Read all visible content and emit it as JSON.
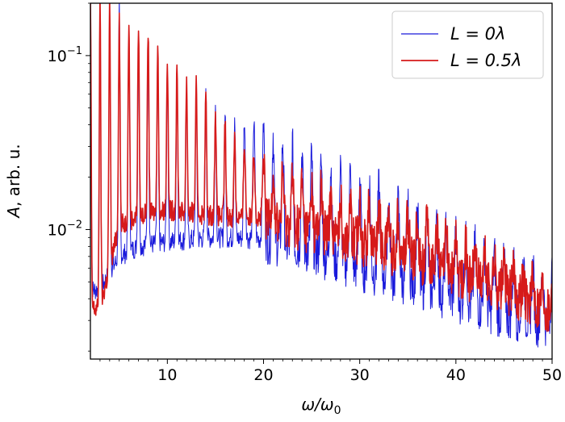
{
  "chart_data": {
    "type": "line",
    "xlabel_base": "ω/ω",
    "xlabel_sub": "0",
    "ylabel_var": "A",
    "ylabel_rest": ", arb. u.",
    "yscale": "log",
    "xlim": [
      2,
      50
    ],
    "ylim": [
      0.0018,
      0.2
    ],
    "x_ticks": [
      10,
      20,
      30,
      40,
      50
    ],
    "x_tick_labels": [
      "10",
      "20",
      "30",
      "40",
      "50"
    ],
    "y_ticks": [
      0.01,
      0.1
    ],
    "y_tick_base": "10",
    "y_tick_exps": [
      "−2",
      "−1"
    ],
    "grid": false,
    "legend_position": "top-right",
    "series": [
      {
        "name": "L = 0λ",
        "color": "#1a1adb",
        "harmonic_peaks": [
          [
            3,
            0.2
          ],
          [
            4,
            0.2
          ],
          [
            5,
            0.185
          ],
          [
            6,
            0.15
          ],
          [
            7,
            0.13
          ],
          [
            8,
            0.11
          ],
          [
            9,
            0.095
          ],
          [
            10,
            0.085
          ],
          [
            11,
            0.075
          ],
          [
            12,
            0.068
          ],
          [
            13,
            0.062
          ],
          [
            14,
            0.058
          ],
          [
            15,
            0.052
          ],
          [
            16,
            0.048
          ],
          [
            17,
            0.045
          ],
          [
            18,
            0.043
          ],
          [
            19,
            0.041
          ],
          [
            20,
            0.039
          ],
          [
            21,
            0.036
          ],
          [
            22,
            0.033
          ],
          [
            23,
            0.03
          ],
          [
            24,
            0.028
          ],
          [
            25,
            0.026
          ],
          [
            26,
            0.024
          ],
          [
            27,
            0.023
          ],
          [
            28,
            0.022
          ],
          [
            29,
            0.021
          ],
          [
            30,
            0.02
          ],
          [
            31,
            0.018
          ],
          [
            32,
            0.017
          ],
          [
            33,
            0.015
          ],
          [
            34,
            0.014
          ],
          [
            35,
            0.013
          ],
          [
            36,
            0.012
          ],
          [
            37,
            0.011
          ],
          [
            38,
            0.01
          ],
          [
            39,
            0.0095
          ],
          [
            40,
            0.009
          ],
          [
            41,
            0.0085
          ],
          [
            42,
            0.008
          ],
          [
            43,
            0.0075
          ],
          [
            44,
            0.007
          ],
          [
            45,
            0.0065
          ],
          [
            46,
            0.0062
          ],
          [
            47,
            0.006
          ],
          [
            48,
            0.0058
          ],
          [
            49,
            0.0056
          ],
          [
            50,
            0.0055
          ]
        ],
        "troughs": [
          [
            3,
            0.0045
          ],
          [
            5,
            0.007
          ],
          [
            7,
            0.008
          ],
          [
            10,
            0.0085
          ],
          [
            15,
            0.009
          ],
          [
            20,
            0.0088
          ],
          [
            25,
            0.0075
          ],
          [
            30,
            0.006
          ],
          [
            35,
            0.005
          ],
          [
            40,
            0.004
          ],
          [
            45,
            0.0032
          ],
          [
            50,
            0.0028
          ]
        ]
      },
      {
        "name": "L = 0.5λ",
        "color": "#d61a1a",
        "harmonic_peaks": [
          [
            3,
            0.2
          ],
          [
            4,
            0.2
          ],
          [
            5,
            0.17
          ],
          [
            6,
            0.16
          ],
          [
            7,
            0.15
          ],
          [
            8,
            0.14
          ],
          [
            9,
            0.12
          ],
          [
            10,
            0.1
          ],
          [
            11,
            0.085
          ],
          [
            12,
            0.075
          ],
          [
            13,
            0.068
          ],
          [
            14,
            0.06
          ],
          [
            15,
            0.05
          ],
          [
            16,
            0.043
          ],
          [
            17,
            0.037
          ],
          [
            18,
            0.032
          ],
          [
            19,
            0.028
          ],
          [
            20,
            0.025
          ],
          [
            21,
            0.023
          ],
          [
            22,
            0.021
          ],
          [
            23,
            0.02
          ],
          [
            24,
            0.019
          ],
          [
            25,
            0.018
          ],
          [
            26,
            0.017
          ],
          [
            27,
            0.016
          ],
          [
            28,
            0.015
          ],
          [
            29,
            0.0145
          ],
          [
            30,
            0.014
          ],
          [
            31,
            0.0135
          ],
          [
            32,
            0.013
          ],
          [
            33,
            0.0125
          ],
          [
            34,
            0.012
          ],
          [
            35,
            0.0115
          ],
          [
            36,
            0.011
          ],
          [
            37,
            0.0105
          ],
          [
            38,
            0.01
          ],
          [
            39,
            0.0092
          ],
          [
            40,
            0.0085
          ],
          [
            41,
            0.008
          ],
          [
            42,
            0.0075
          ],
          [
            43,
            0.007
          ],
          [
            44,
            0.0065
          ],
          [
            45,
            0.006
          ],
          [
            46,
            0.0056
          ],
          [
            47,
            0.0053
          ],
          [
            48,
            0.005
          ],
          [
            49,
            0.0048
          ],
          [
            50,
            0.0045
          ]
        ],
        "troughs": [
          [
            3,
            0.0035
          ],
          [
            5,
            0.0105
          ],
          [
            7,
            0.012
          ],
          [
            10,
            0.013
          ],
          [
            15,
            0.012
          ],
          [
            20,
            0.0115
          ],
          [
            25,
            0.01
          ],
          [
            30,
            0.0085
          ],
          [
            35,
            0.007
          ],
          [
            40,
            0.0055
          ],
          [
            45,
            0.0045
          ],
          [
            50,
            0.0034
          ]
        ]
      }
    ]
  }
}
